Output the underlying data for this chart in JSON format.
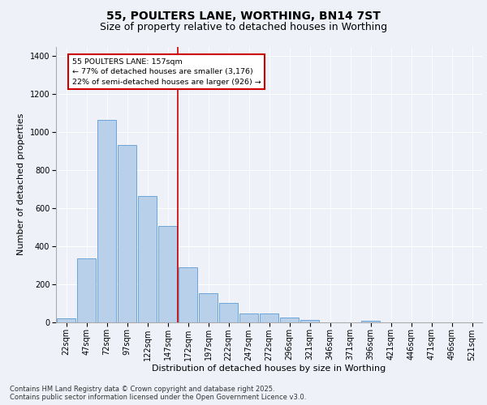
{
  "title": "55, POULTERS LANE, WORTHING, BN14 7ST",
  "subtitle": "Size of property relative to detached houses in Worthing",
  "xlabel": "Distribution of detached houses by size in Worthing",
  "ylabel": "Number of detached properties",
  "categories": [
    "22sqm",
    "47sqm",
    "72sqm",
    "97sqm",
    "122sqm",
    "147sqm",
    "172sqm",
    "197sqm",
    "222sqm",
    "247sqm",
    "272sqm",
    "296sqm",
    "321sqm",
    "346sqm",
    "371sqm",
    "396sqm",
    "421sqm",
    "446sqm",
    "471sqm",
    "496sqm",
    "521sqm"
  ],
  "values": [
    20,
    335,
    1065,
    930,
    665,
    505,
    290,
    150,
    100,
    45,
    45,
    22,
    10,
    0,
    0,
    8,
    0,
    0,
    0,
    0,
    0
  ],
  "bar_color": "#b8d0ea",
  "bar_edge_color": "#5b9bd5",
  "vline_x": 5.5,
  "vline_color": "#cc0000",
  "annotation_text": "55 POULTERS LANE: 157sqm\n← 77% of detached houses are smaller (3,176)\n22% of semi-detached houses are larger (926) →",
  "annotation_box_color": "#cc0000",
  "ylim": [
    0,
    1450
  ],
  "yticks": [
    0,
    200,
    400,
    600,
    800,
    1000,
    1200,
    1400
  ],
  "bg_color": "#eef2f8",
  "plot_bg_color": "#eef2f8",
  "footer_text": "Contains HM Land Registry data © Crown copyright and database right 2025.\nContains public sector information licensed under the Open Government Licence v3.0.",
  "title_fontsize": 10,
  "subtitle_fontsize": 9,
  "axis_label_fontsize": 8,
  "tick_fontsize": 7,
  "footer_fontsize": 6
}
